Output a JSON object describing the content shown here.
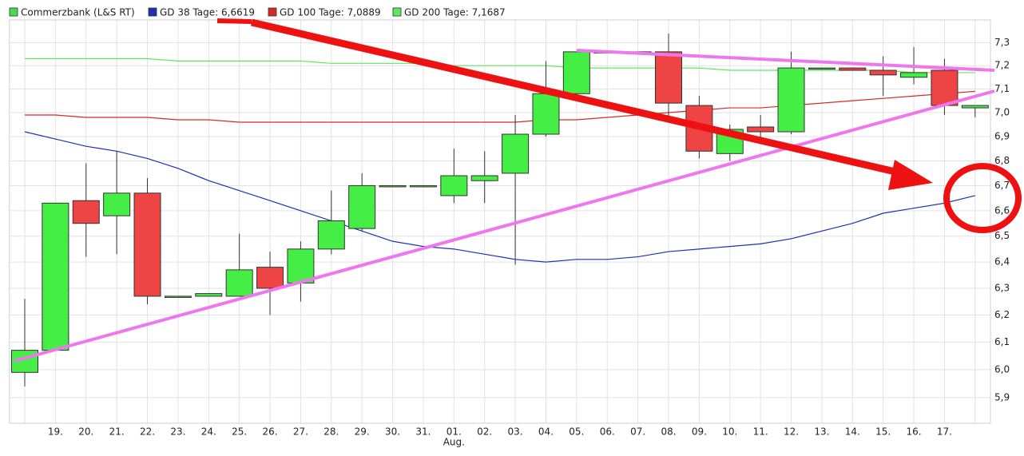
{
  "chart_data": {
    "type": "candlestick",
    "categories": [
      null,
      "19.",
      "20.",
      "21.",
      "22.",
      "23.",
      "24.",
      "25.",
      "26.",
      "27.",
      "28.",
      "29.",
      "30.",
      "31.",
      "01.",
      "02.",
      "03.",
      "04.",
      "05.",
      "06.",
      "07.",
      "08.",
      "09.",
      "10.",
      "11.",
      "12.",
      "13.",
      "14.",
      "15.",
      "16.",
      "17.",
      null
    ],
    "category_sublabels": [
      null,
      null,
      null,
      null,
      null,
      null,
      null,
      null,
      null,
      null,
      null,
      null,
      null,
      null,
      "Aug.",
      null,
      null,
      null,
      null,
      null,
      null,
      null,
      null,
      null,
      null,
      null,
      null,
      null,
      null,
      null,
      null,
      null
    ],
    "log_scale": true,
    "grid": true,
    "ylim": [
      5.81,
      7.4
    ],
    "yticks": [
      {
        "value": 5.9,
        "label": "5,9"
      },
      {
        "value": 6.0,
        "label": "6,0"
      },
      {
        "value": 6.1,
        "label": "6,1"
      },
      {
        "value": 6.2,
        "label": "6,2"
      },
      {
        "value": 6.3,
        "label": "6,3"
      },
      {
        "value": 6.4,
        "label": "6,4"
      },
      {
        "value": 6.5,
        "label": "6,5"
      },
      {
        "value": 6.6,
        "label": "6,6"
      },
      {
        "value": 6.7,
        "label": "6,7"
      },
      {
        "value": 6.8,
        "label": "6,8"
      },
      {
        "value": 6.9,
        "label": "6,9"
      },
      {
        "value": 7.0,
        "label": "7,0"
      },
      {
        "value": 7.1,
        "label": "7,1"
      },
      {
        "value": 7.2,
        "label": "7,2"
      },
      {
        "value": 7.3,
        "label": "7,3"
      }
    ],
    "series": [
      {
        "name": "Commerzbank (L&S RT)",
        "type": "candlestick",
        "color": "#44dd44",
        "color_up": "#44ee44",
        "color_down": "#ee4444",
        "open": [
          5.99,
          6.07,
          6.64,
          6.58,
          6.67,
          6.27,
          6.27,
          6.27,
          6.38,
          6.32,
          6.45,
          6.53,
          6.7,
          6.7,
          6.66,
          6.72,
          6.75,
          6.91,
          7.08,
          7.26,
          7.26,
          7.26,
          7.03,
          6.83,
          6.94,
          6.92,
          7.19,
          7.19,
          7.18,
          7.15,
          7.18,
          7.02
        ],
        "high": [
          6.26,
          6.63,
          6.79,
          6.84,
          6.73,
          6.27,
          6.28,
          6.51,
          6.44,
          6.48,
          6.68,
          6.75,
          6.7,
          6.7,
          6.85,
          6.84,
          6.99,
          7.22,
          7.26,
          7.26,
          7.26,
          7.34,
          7.07,
          6.95,
          6.99,
          7.26,
          7.19,
          7.19,
          7.24,
          7.28,
          7.23,
          7.03
        ],
        "low": [
          5.94,
          6.07,
          6.42,
          6.43,
          6.24,
          6.27,
          6.27,
          6.27,
          6.2,
          6.25,
          6.43,
          6.52,
          6.7,
          6.7,
          6.63,
          6.63,
          6.39,
          6.9,
          7.05,
          7.26,
          7.26,
          6.97,
          6.81,
          6.8,
          6.87,
          6.91,
          7.19,
          7.18,
          7.07,
          7.12,
          6.99,
          6.98
        ],
        "close": [
          6.07,
          6.63,
          6.55,
          6.67,
          6.27,
          6.27,
          6.28,
          6.37,
          6.3,
          6.45,
          6.56,
          6.7,
          6.7,
          6.7,
          6.74,
          6.74,
          6.91,
          7.08,
          7.26,
          7.26,
          7.26,
          7.04,
          6.84,
          6.93,
          6.92,
          7.19,
          7.19,
          7.18,
          7.16,
          7.17,
          7.03,
          7.03
        ]
      },
      {
        "name": "GD 38 Tage: 6,6619",
        "type": "line",
        "color": "#1f2fb8",
        "values": [
          6.92,
          6.89,
          6.86,
          6.84,
          6.81,
          6.77,
          6.72,
          6.68,
          6.64,
          6.6,
          6.56,
          6.52,
          6.48,
          6.46,
          6.45,
          6.43,
          6.41,
          6.4,
          6.41,
          6.41,
          6.42,
          6.44,
          6.45,
          6.46,
          6.47,
          6.49,
          6.52,
          6.55,
          6.59,
          6.61,
          6.63,
          6.66
        ]
      },
      {
        "name": "GD 100 Tage: 7,0889",
        "type": "line",
        "color": "#d42a2a",
        "values": [
          6.99,
          6.99,
          6.98,
          6.98,
          6.98,
          6.97,
          6.97,
          6.96,
          6.96,
          6.96,
          6.96,
          6.96,
          6.96,
          6.96,
          6.96,
          6.96,
          6.96,
          6.97,
          6.97,
          6.98,
          6.99,
          7.0,
          7.01,
          7.02,
          7.02,
          7.03,
          7.04,
          7.05,
          7.06,
          7.07,
          7.08,
          7.09
        ]
      },
      {
        "name": "GD 200 Tage: 7,1687",
        "type": "line",
        "color": "#5fe85f",
        "values": [
          7.23,
          7.23,
          7.23,
          7.23,
          7.23,
          7.22,
          7.22,
          7.22,
          7.22,
          7.22,
          7.21,
          7.21,
          7.21,
          7.21,
          7.2,
          7.2,
          7.2,
          7.2,
          7.19,
          7.19,
          7.19,
          7.19,
          7.19,
          7.18,
          7.18,
          7.18,
          7.18,
          7.18,
          7.18,
          7.17,
          7.17,
          7.17
        ]
      }
    ]
  }
}
